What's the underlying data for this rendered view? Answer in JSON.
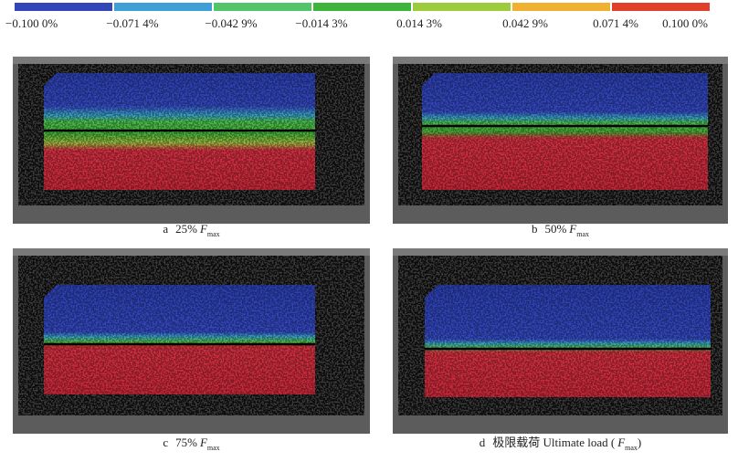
{
  "colorbar": {
    "labels": [
      "−0.100 0%",
      "−0.071 4%",
      "−0.042 9%",
      "−0.014 3%",
      "0.014 3%",
      "0.042 9%",
      "0.071 4%",
      "0.100 0%"
    ]
  },
  "panels": [
    {
      "caption": {
        "letter": "a",
        "text": "25%",
        "symbol": "F",
        "subscript": "max"
      }
    },
    {
      "caption": {
        "letter": "b",
        "text": "50%",
        "symbol": "F",
        "subscript": "max"
      }
    },
    {
      "caption": {
        "letter": "c",
        "text": "75%",
        "symbol": "F",
        "subscript": "max"
      }
    },
    {
      "caption": {
        "letter": "d",
        "text": "极限载荷 Ultimate load (",
        "symbol": "F",
        "subscript": "max",
        "suffix": ")"
      }
    }
  ]
}
